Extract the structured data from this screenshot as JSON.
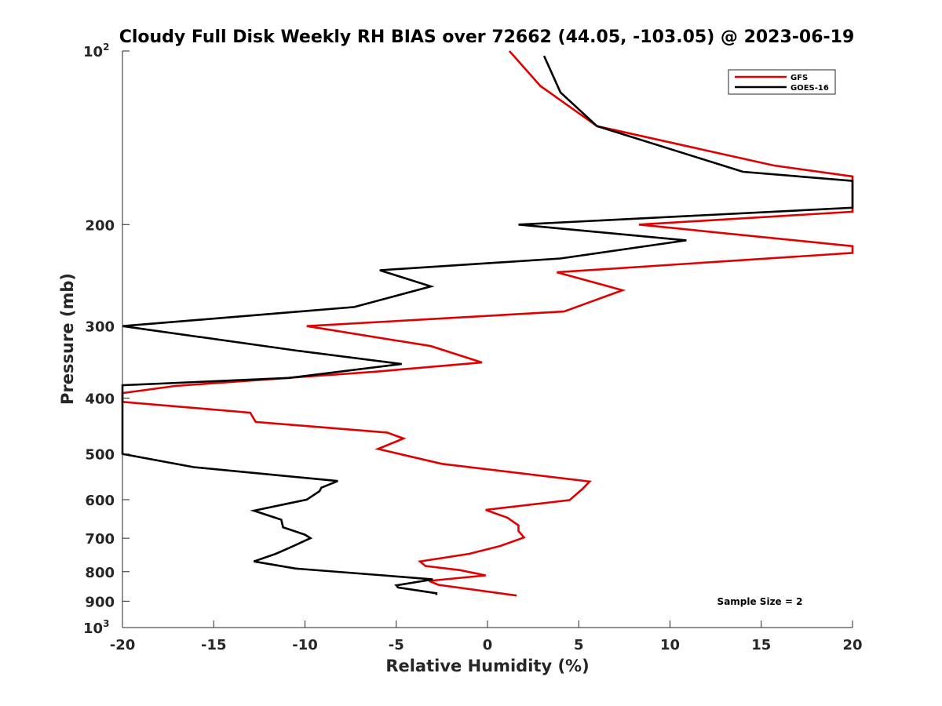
{
  "chart_data": {
    "type": "line",
    "title": "Cloudy Full Disk Weekly RH BIAS over 72662 (44.05, -103.05) @ 2023-06-19",
    "xlabel": "Relative Humidity (%)",
    "ylabel": "Pressure (mb)",
    "xlim": [
      -20,
      20
    ],
    "ylim": [
      1000,
      100
    ],
    "y_scale": "log",
    "y_reversed": true,
    "grid": false,
    "legend_position": "top-right",
    "x_ticks": [
      -20,
      -15,
      -10,
      -5,
      0,
      5,
      10,
      15,
      20
    ],
    "x_tick_labels": [
      "-20",
      "-15",
      "-10",
      "-5",
      "0",
      "5",
      "10",
      "15",
      "20"
    ],
    "y_ticks": [
      {
        "value": 100,
        "label": "10",
        "exp": "2"
      },
      {
        "value": 200,
        "label": "200",
        "exp": ""
      },
      {
        "value": 300,
        "label": "300",
        "exp": ""
      },
      {
        "value": 400,
        "label": "400",
        "exp": ""
      },
      {
        "value": 500,
        "label": "500",
        "exp": ""
      },
      {
        "value": 600,
        "label": "600",
        "exp": ""
      },
      {
        "value": 700,
        "label": "700",
        "exp": ""
      },
      {
        "value": 800,
        "label": "800",
        "exp": ""
      },
      {
        "value": 900,
        "label": "900",
        "exp": ""
      },
      {
        "value": 1000,
        "label": "10",
        "exp": "3"
      }
    ],
    "series": [
      {
        "name": "GFS",
        "color": "#e00000",
        "points": [
          [
            1.2,
            100
          ],
          [
            2.9,
            115
          ],
          [
            6.0,
            135
          ],
          [
            15.7,
            158
          ],
          [
            20,
            165
          ],
          [
            20,
            190
          ],
          [
            8.3,
            200
          ],
          [
            20,
            218
          ],
          [
            20,
            224
          ],
          [
            3.8,
            242
          ],
          [
            7.4,
            260
          ],
          [
            4.2,
            283
          ],
          [
            -9.9,
            300
          ],
          [
            -3.1,
            325
          ],
          [
            -0.3,
            347
          ],
          [
            -6.2,
            360
          ],
          [
            -17.1,
            381
          ],
          [
            -20,
            392
          ],
          [
            -20,
            406
          ],
          [
            -13.0,
            424
          ],
          [
            -12.7,
            440
          ],
          [
            -5.5,
            459
          ],
          [
            -4.6,
            470
          ],
          [
            -6.0,
            490
          ],
          [
            -2.5,
            520
          ],
          [
            5.6,
            558
          ],
          [
            5.2,
            575
          ],
          [
            4.5,
            601
          ],
          [
            -0.1,
            625
          ],
          [
            1.1,
            645
          ],
          [
            1.7,
            665
          ],
          [
            1.7,
            680
          ],
          [
            2.0,
            698
          ],
          [
            0.7,
            722
          ],
          [
            -1.0,
            745
          ],
          [
            -3.7,
            768
          ],
          [
            -3.4,
            782
          ],
          [
            -1.5,
            795
          ],
          [
            -0.1,
            812
          ],
          [
            -3.2,
            830
          ],
          [
            -2.7,
            843
          ],
          [
            1.6,
            880
          ]
        ]
      },
      {
        "name": "GOES-16",
        "color": "#000000",
        "points": [
          [
            3.1,
            102
          ],
          [
            4.0,
            118
          ],
          [
            6.0,
            135
          ],
          [
            14.0,
            162
          ],
          [
            20,
            168
          ],
          [
            20,
            187
          ],
          [
            1.7,
            200
          ],
          [
            10.9,
            213
          ],
          [
            4.0,
            229
          ],
          [
            -5.9,
            240
          ],
          [
            -3.1,
            256
          ],
          [
            -7.3,
            278
          ],
          [
            -20,
            300
          ],
          [
            -10.4,
            331
          ],
          [
            -4.7,
            349
          ],
          [
            -10.9,
            369
          ],
          [
            -20,
            380
          ],
          [
            -20,
            495
          ],
          [
            -20,
            500
          ],
          [
            -16.1,
            527
          ],
          [
            -8.2,
            557
          ],
          [
            -9.1,
            572
          ],
          [
            -9.2,
            580
          ],
          [
            -9.9,
            600
          ],
          [
            -12.8,
            627
          ],
          [
            -11.3,
            650
          ],
          [
            -11.2,
            670
          ],
          [
            -10.0,
            690
          ],
          [
            -9.7,
            700
          ],
          [
            -10.8,
            726
          ],
          [
            -11.6,
            745
          ],
          [
            -12.8,
            768
          ],
          [
            -10.5,
            790
          ],
          [
            -5.7,
            812
          ],
          [
            -3.0,
            825
          ],
          [
            -5.0,
            845
          ],
          [
            -4.9,
            852
          ],
          [
            -2.8,
            872
          ],
          [
            -2.8,
            878
          ]
        ]
      }
    ],
    "annotation": "Sample Size = 2"
  }
}
